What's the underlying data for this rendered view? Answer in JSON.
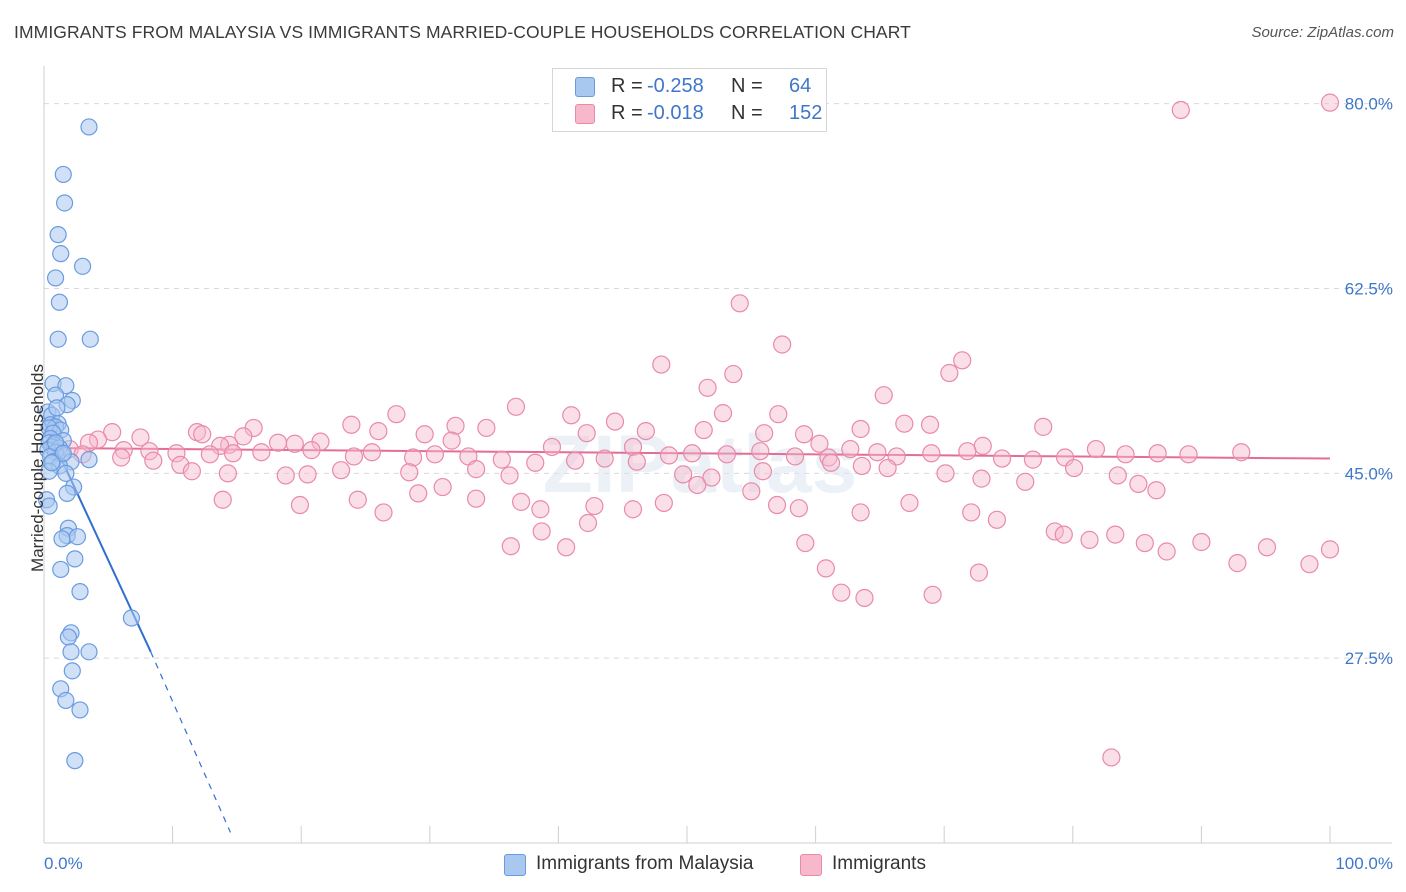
{
  "title": "IMMIGRANTS FROM MALAYSIA VS IMMIGRANTS MARRIED-COUPLE HOUSEHOLDS CORRELATION CHART",
  "source": "Source: ZipAtlas.com",
  "watermark": "ZIPatlas",
  "legend": {
    "rows": [
      {
        "r_label": "R =",
        "r_value": "-0.258",
        "n_label": "N =",
        "n_value": "64"
      },
      {
        "r_label": "R =",
        "r_value": "-0.018",
        "n_label": "N =",
        "n_value": "152"
      }
    ]
  },
  "bottom_legend": [
    "Immigrants from Malaysia",
    "Immigrants"
  ],
  "colors": {
    "blue_fill": "#a9c8f0",
    "blue_stroke": "#6a9be0",
    "blue_line": "#2f6fd0",
    "pink_fill": "#f7b8cc",
    "pink_stroke": "#e98aa8",
    "pink_line": "#e46d95",
    "tick_label": "#3f77c8",
    "grid": "#d9d9d9"
  },
  "chart_data": {
    "type": "scatter",
    "title": "IMMIGRANTS FROM MALAYSIA VS IMMIGRANTS MARRIED-COUPLE HOUSEHOLDS CORRELATION CHART",
    "xlabel": "",
    "ylabel": "Married-couple Households",
    "xlim": [
      0,
      100
    ],
    "ylim": [
      10,
      83
    ],
    "x_tick_labels": [
      "0.0%",
      "100.0%"
    ],
    "y_ticks": [
      27.5,
      45.0,
      62.5,
      80.0
    ],
    "y_tick_labels": [
      "27.5%",
      "45.0%",
      "62.5%",
      "80.0%"
    ],
    "grid": "horizontal dashed",
    "legend_position": "top-center",
    "series": [
      {
        "name": "Immigrants from Malaysia",
        "color": "blue",
        "trend": {
          "x0": 0.0,
          "y0": 49.9,
          "x_solid_end": 8.3,
          "y_solid_end": 28.1,
          "x_dash_end": 14.5,
          "y_dash_end": 11.0
        },
        "points": [
          [
            3.5,
            77.8
          ],
          [
            1.5,
            73.3
          ],
          [
            1.6,
            70.6
          ],
          [
            1.1,
            67.6
          ],
          [
            1.3,
            65.8
          ],
          [
            3.0,
            64.6
          ],
          [
            0.9,
            63.5
          ],
          [
            1.2,
            61.2
          ],
          [
            1.1,
            57.7
          ],
          [
            3.6,
            57.7
          ],
          [
            0.7,
            53.5
          ],
          [
            1.7,
            53.3
          ],
          [
            0.9,
            52.4
          ],
          [
            2.2,
            51.9
          ],
          [
            1.8,
            51.5
          ],
          [
            0.3,
            50.8
          ],
          [
            0.6,
            50.5
          ],
          [
            1.1,
            49.7
          ],
          [
            0.5,
            49.6
          ],
          [
            0.9,
            49.4
          ],
          [
            0.4,
            49.3
          ],
          [
            1.3,
            49.1
          ],
          [
            0.7,
            48.8
          ],
          [
            0.5,
            48.3
          ],
          [
            1.5,
            48.1
          ],
          [
            0.4,
            47.9
          ],
          [
            0.8,
            47.7
          ],
          [
            0.6,
            47.5
          ],
          [
            1.2,
            47.4
          ],
          [
            0.3,
            47.2
          ],
          [
            0.9,
            47.0
          ],
          [
            1.4,
            46.8
          ],
          [
            0.5,
            46.6
          ],
          [
            3.5,
            46.3
          ],
          [
            0.7,
            46.1
          ],
          [
            2.1,
            46.1
          ],
          [
            1.2,
            45.7
          ],
          [
            0.4,
            45.2
          ],
          [
            1.7,
            45.0
          ],
          [
            2.3,
            43.7
          ],
          [
            1.8,
            43.1
          ],
          [
            0.2,
            42.5
          ],
          [
            0.4,
            41.9
          ],
          [
            1.9,
            39.8
          ],
          [
            1.8,
            39.1
          ],
          [
            1.4,
            38.8
          ],
          [
            2.6,
            39.0
          ],
          [
            2.4,
            36.9
          ],
          [
            1.3,
            35.9
          ],
          [
            2.8,
            33.8
          ],
          [
            6.8,
            31.3
          ],
          [
            2.1,
            29.9
          ],
          [
            1.9,
            29.5
          ],
          [
            3.5,
            28.1
          ],
          [
            2.1,
            28.1
          ],
          [
            2.2,
            26.3
          ],
          [
            1.3,
            24.6
          ],
          [
            1.7,
            23.5
          ],
          [
            2.8,
            22.6
          ],
          [
            2.4,
            17.8
          ],
          [
            0.9,
            47.9
          ],
          [
            1.5,
            46.9
          ],
          [
            0.6,
            46.0
          ],
          [
            1.0,
            51.2
          ]
        ]
      },
      {
        "name": "Immigrants",
        "color": "pink",
        "trend": {
          "x0": 0.0,
          "y0": 47.4,
          "x1": 100.0,
          "y1": 46.4
        },
        "points": [
          [
            100.0,
            80.1
          ],
          [
            88.4,
            79.4
          ],
          [
            54.1,
            61.1
          ],
          [
            57.4,
            57.2
          ],
          [
            48.0,
            55.3
          ],
          [
            53.6,
            54.4
          ],
          [
            71.4,
            55.7
          ],
          [
            70.4,
            54.5
          ],
          [
            51.6,
            53.1
          ],
          [
            65.3,
            52.4
          ],
          [
            36.7,
            51.3
          ],
          [
            27.4,
            50.6
          ],
          [
            41.0,
            50.5
          ],
          [
            52.8,
            50.7
          ],
          [
            57.1,
            50.6
          ],
          [
            44.4,
            49.9
          ],
          [
            23.9,
            49.6
          ],
          [
            32.0,
            49.5
          ],
          [
            34.4,
            49.3
          ],
          [
            16.3,
            49.3
          ],
          [
            26.0,
            49.0
          ],
          [
            11.9,
            48.9
          ],
          [
            5.3,
            48.9
          ],
          [
            12.3,
            48.7
          ],
          [
            15.5,
            48.5
          ],
          [
            7.5,
            48.4
          ],
          [
            4.2,
            48.2
          ],
          [
            29.6,
            48.7
          ],
          [
            31.7,
            48.1
          ],
          [
            21.5,
            48.0
          ],
          [
            19.5,
            47.8
          ],
          [
            18.2,
            47.9
          ],
          [
            14.4,
            47.7
          ],
          [
            13.7,
            47.6
          ],
          [
            39.5,
            47.5
          ],
          [
            45.8,
            47.5
          ],
          [
            42.2,
            48.8
          ],
          [
            46.8,
            49.0
          ],
          [
            51.3,
            49.1
          ],
          [
            63.5,
            49.2
          ],
          [
            66.9,
            49.7
          ],
          [
            68.9,
            49.6
          ],
          [
            77.7,
            49.4
          ],
          [
            56.0,
            48.8
          ],
          [
            59.1,
            48.7
          ],
          [
            60.3,
            47.8
          ],
          [
            73.0,
            47.6
          ],
          [
            3.5,
            47.9
          ],
          [
            2.0,
            47.3
          ],
          [
            6.2,
            47.2
          ],
          [
            8.2,
            47.1
          ],
          [
            10.3,
            46.9
          ],
          [
            12.9,
            46.8
          ],
          [
            14.7,
            46.9
          ],
          [
            16.9,
            47.0
          ],
          [
            20.8,
            47.2
          ],
          [
            25.5,
            47.0
          ],
          [
            24.1,
            46.6
          ],
          [
            28.7,
            46.5
          ],
          [
            30.4,
            46.8
          ],
          [
            33.0,
            46.6
          ],
          [
            35.6,
            46.3
          ],
          [
            38.2,
            46.0
          ],
          [
            41.3,
            46.2
          ],
          [
            43.6,
            46.4
          ],
          [
            46.1,
            46.1
          ],
          [
            48.6,
            46.7
          ],
          [
            50.4,
            46.9
          ],
          [
            53.1,
            46.8
          ],
          [
            55.7,
            47.1
          ],
          [
            58.4,
            46.6
          ],
          [
            61.0,
            46.5
          ],
          [
            62.7,
            47.3
          ],
          [
            64.8,
            47.0
          ],
          [
            66.3,
            46.6
          ],
          [
            69.0,
            46.9
          ],
          [
            71.8,
            47.1
          ],
          [
            74.5,
            46.4
          ],
          [
            76.9,
            46.3
          ],
          [
            79.4,
            46.5
          ],
          [
            81.8,
            47.3
          ],
          [
            84.1,
            46.8
          ],
          [
            86.6,
            46.9
          ],
          [
            89.0,
            46.8
          ],
          [
            93.1,
            47.0
          ],
          [
            3.0,
            46.8
          ],
          [
            6.0,
            46.5
          ],
          [
            8.5,
            46.2
          ],
          [
            10.6,
            45.8
          ],
          [
            11.5,
            45.2
          ],
          [
            14.3,
            45.0
          ],
          [
            18.8,
            44.8
          ],
          [
            20.5,
            44.9
          ],
          [
            23.1,
            45.3
          ],
          [
            28.4,
            45.1
          ],
          [
            33.6,
            45.4
          ],
          [
            36.2,
            44.8
          ],
          [
            49.7,
            44.9
          ],
          [
            51.9,
            44.6
          ],
          [
            55.9,
            45.2
          ],
          [
            61.2,
            46.0
          ],
          [
            63.6,
            45.7
          ],
          [
            65.6,
            45.5
          ],
          [
            70.1,
            45.0
          ],
          [
            72.9,
            44.5
          ],
          [
            76.3,
            44.2
          ],
          [
            80.1,
            45.5
          ],
          [
            83.5,
            44.8
          ],
          [
            85.1,
            44.0
          ],
          [
            86.5,
            43.4
          ],
          [
            13.9,
            42.5
          ],
          [
            19.9,
            42.0
          ],
          [
            24.4,
            42.5
          ],
          [
            29.1,
            43.1
          ],
          [
            33.6,
            42.6
          ],
          [
            38.6,
            41.6
          ],
          [
            42.8,
            41.9
          ],
          [
            45.8,
            41.6
          ],
          [
            48.2,
            42.2
          ],
          [
            50.8,
            43.9
          ],
          [
            55.0,
            43.3
          ],
          [
            57.0,
            42.0
          ],
          [
            58.7,
            41.7
          ],
          [
            63.5,
            41.3
          ],
          [
            67.3,
            42.2
          ],
          [
            72.1,
            41.3
          ],
          [
            74.1,
            40.6
          ],
          [
            78.6,
            39.5
          ],
          [
            79.3,
            39.2
          ],
          [
            81.3,
            38.7
          ],
          [
            83.3,
            39.2
          ],
          [
            85.6,
            38.4
          ],
          [
            87.3,
            37.6
          ],
          [
            90.0,
            38.5
          ],
          [
            92.8,
            36.5
          ],
          [
            95.1,
            38.0
          ],
          [
            98.4,
            36.4
          ],
          [
            100.0,
            37.8
          ],
          [
            59.2,
            38.4
          ],
          [
            60.8,
            36.0
          ],
          [
            62.0,
            33.7
          ],
          [
            63.8,
            33.2
          ],
          [
            69.1,
            33.5
          ],
          [
            72.7,
            35.6
          ],
          [
            36.3,
            38.1
          ],
          [
            38.7,
            39.5
          ],
          [
            42.3,
            40.3
          ],
          [
            40.6,
            38.0
          ],
          [
            83.0,
            18.1
          ],
          [
            26.4,
            41.3
          ],
          [
            31.0,
            43.7
          ],
          [
            37.1,
            42.3
          ]
        ]
      }
    ]
  }
}
